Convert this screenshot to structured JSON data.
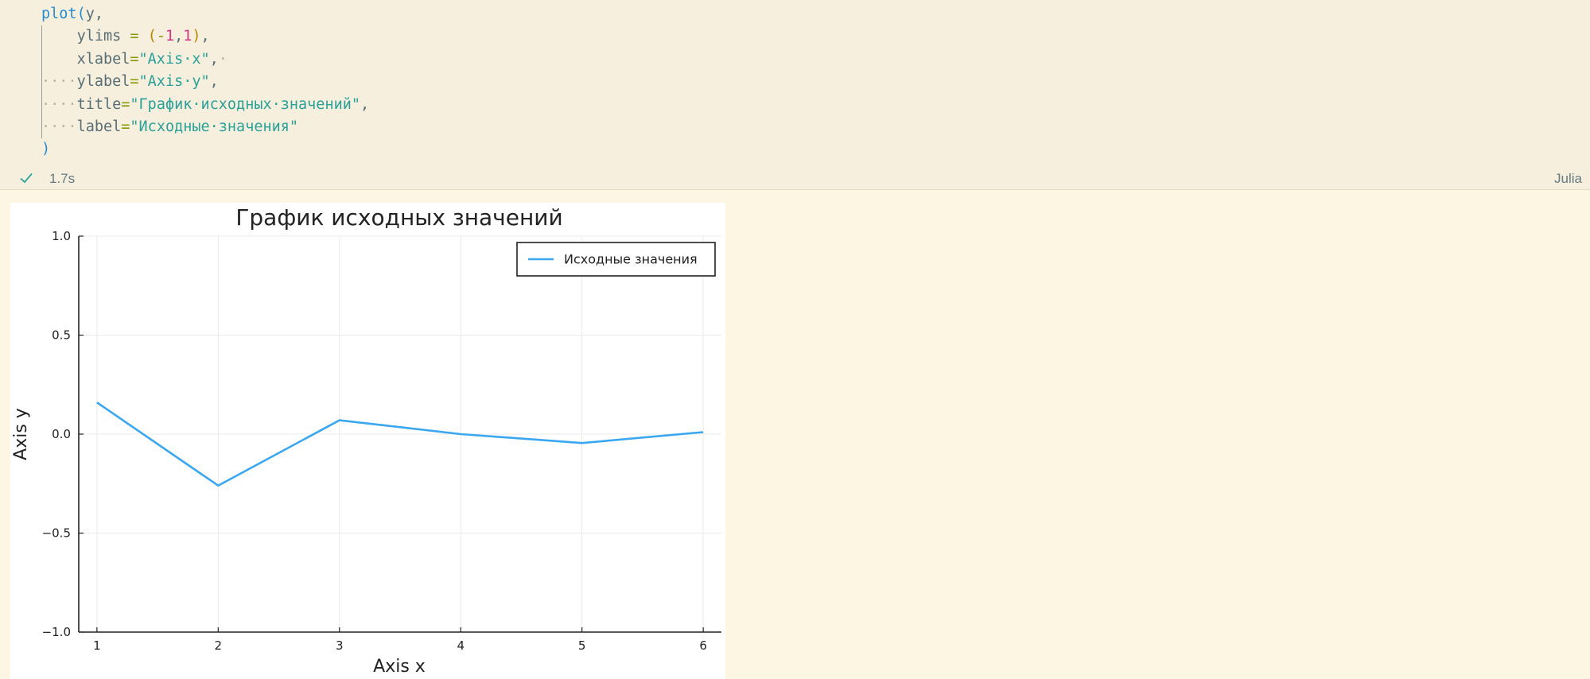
{
  "code_cell": {
    "lines": [
      [
        {
          "t": "plot",
          "c": "fn"
        },
        {
          "t": "(",
          "c": "paren-b"
        },
        {
          "t": "y,",
          "c": "plain"
        }
      ],
      [
        {
          "t": "    ",
          "c": "plain"
        },
        {
          "t": "ylims",
          "c": "plain"
        },
        {
          "t": " = ",
          "c": "op"
        },
        {
          "t": "(",
          "c": "paren-y"
        },
        {
          "t": "-",
          "c": "op"
        },
        {
          "t": "1",
          "c": "num"
        },
        {
          "t": ",",
          "c": "plain"
        },
        {
          "t": "1",
          "c": "num"
        },
        {
          "t": ")",
          "c": "paren-y"
        },
        {
          "t": ",",
          "c": "plain"
        }
      ],
      [
        {
          "t": "    ",
          "c": "plain"
        },
        {
          "t": "xlabel",
          "c": "plain"
        },
        {
          "t": "=",
          "c": "op"
        },
        {
          "t": "\"Axis·x\"",
          "c": "str"
        },
        {
          "t": ",",
          "c": "plain"
        },
        {
          "t": "·",
          "c": "ws-dots"
        }
      ],
      [
        {
          "t": "····",
          "c": "ws-dots"
        },
        {
          "t": "ylabel",
          "c": "plain"
        },
        {
          "t": "=",
          "c": "op"
        },
        {
          "t": "\"Axis·y\"",
          "c": "str"
        },
        {
          "t": ",",
          "c": "plain"
        }
      ],
      [
        {
          "t": "····",
          "c": "ws-dots"
        },
        {
          "t": "title",
          "c": "plain"
        },
        {
          "t": "=",
          "c": "op"
        },
        {
          "t": "\"График·исходных·значений\"",
          "c": "str"
        },
        {
          "t": ",",
          "c": "plain"
        }
      ],
      [
        {
          "t": "····",
          "c": "ws-dots"
        },
        {
          "t": "label",
          "c": "plain"
        },
        {
          "t": "=",
          "c": "op"
        },
        {
          "t": "\"Исходные·значения\"",
          "c": "str"
        }
      ],
      [
        {
          "t": ")",
          "c": "paren-b"
        }
      ]
    ]
  },
  "status": {
    "check_icon": "check-icon",
    "exec_time": "1.7s",
    "language": "Julia",
    "check_color": "#2aa198"
  },
  "chart_data": {
    "type": "line",
    "title": "График исходных значений",
    "xlabel": "Axis x",
    "ylabel": "Axis y",
    "ylim": [
      -1,
      1
    ],
    "xlim": [
      0.85,
      6.15
    ],
    "x": [
      1,
      2,
      3,
      4,
      5,
      6
    ],
    "x_ticks": [
      1,
      2,
      3,
      4,
      5,
      6
    ],
    "x_tick_labels": [
      "1",
      "2",
      "3",
      "4",
      "5",
      "6"
    ],
    "y_ticks": [
      -1,
      -0.5,
      0,
      0.5,
      1
    ],
    "y_tick_labels": [
      "−1.0",
      "−0.5",
      "0.0",
      "0.5",
      "1.0"
    ],
    "grid": true,
    "legend_position": "top-right",
    "series": [
      {
        "name": "Исходные значения",
        "color": "#3ba7f0",
        "values": [
          0.16,
          -0.26,
          0.07,
          0.0,
          -0.045,
          0.01
        ]
      }
    ]
  }
}
